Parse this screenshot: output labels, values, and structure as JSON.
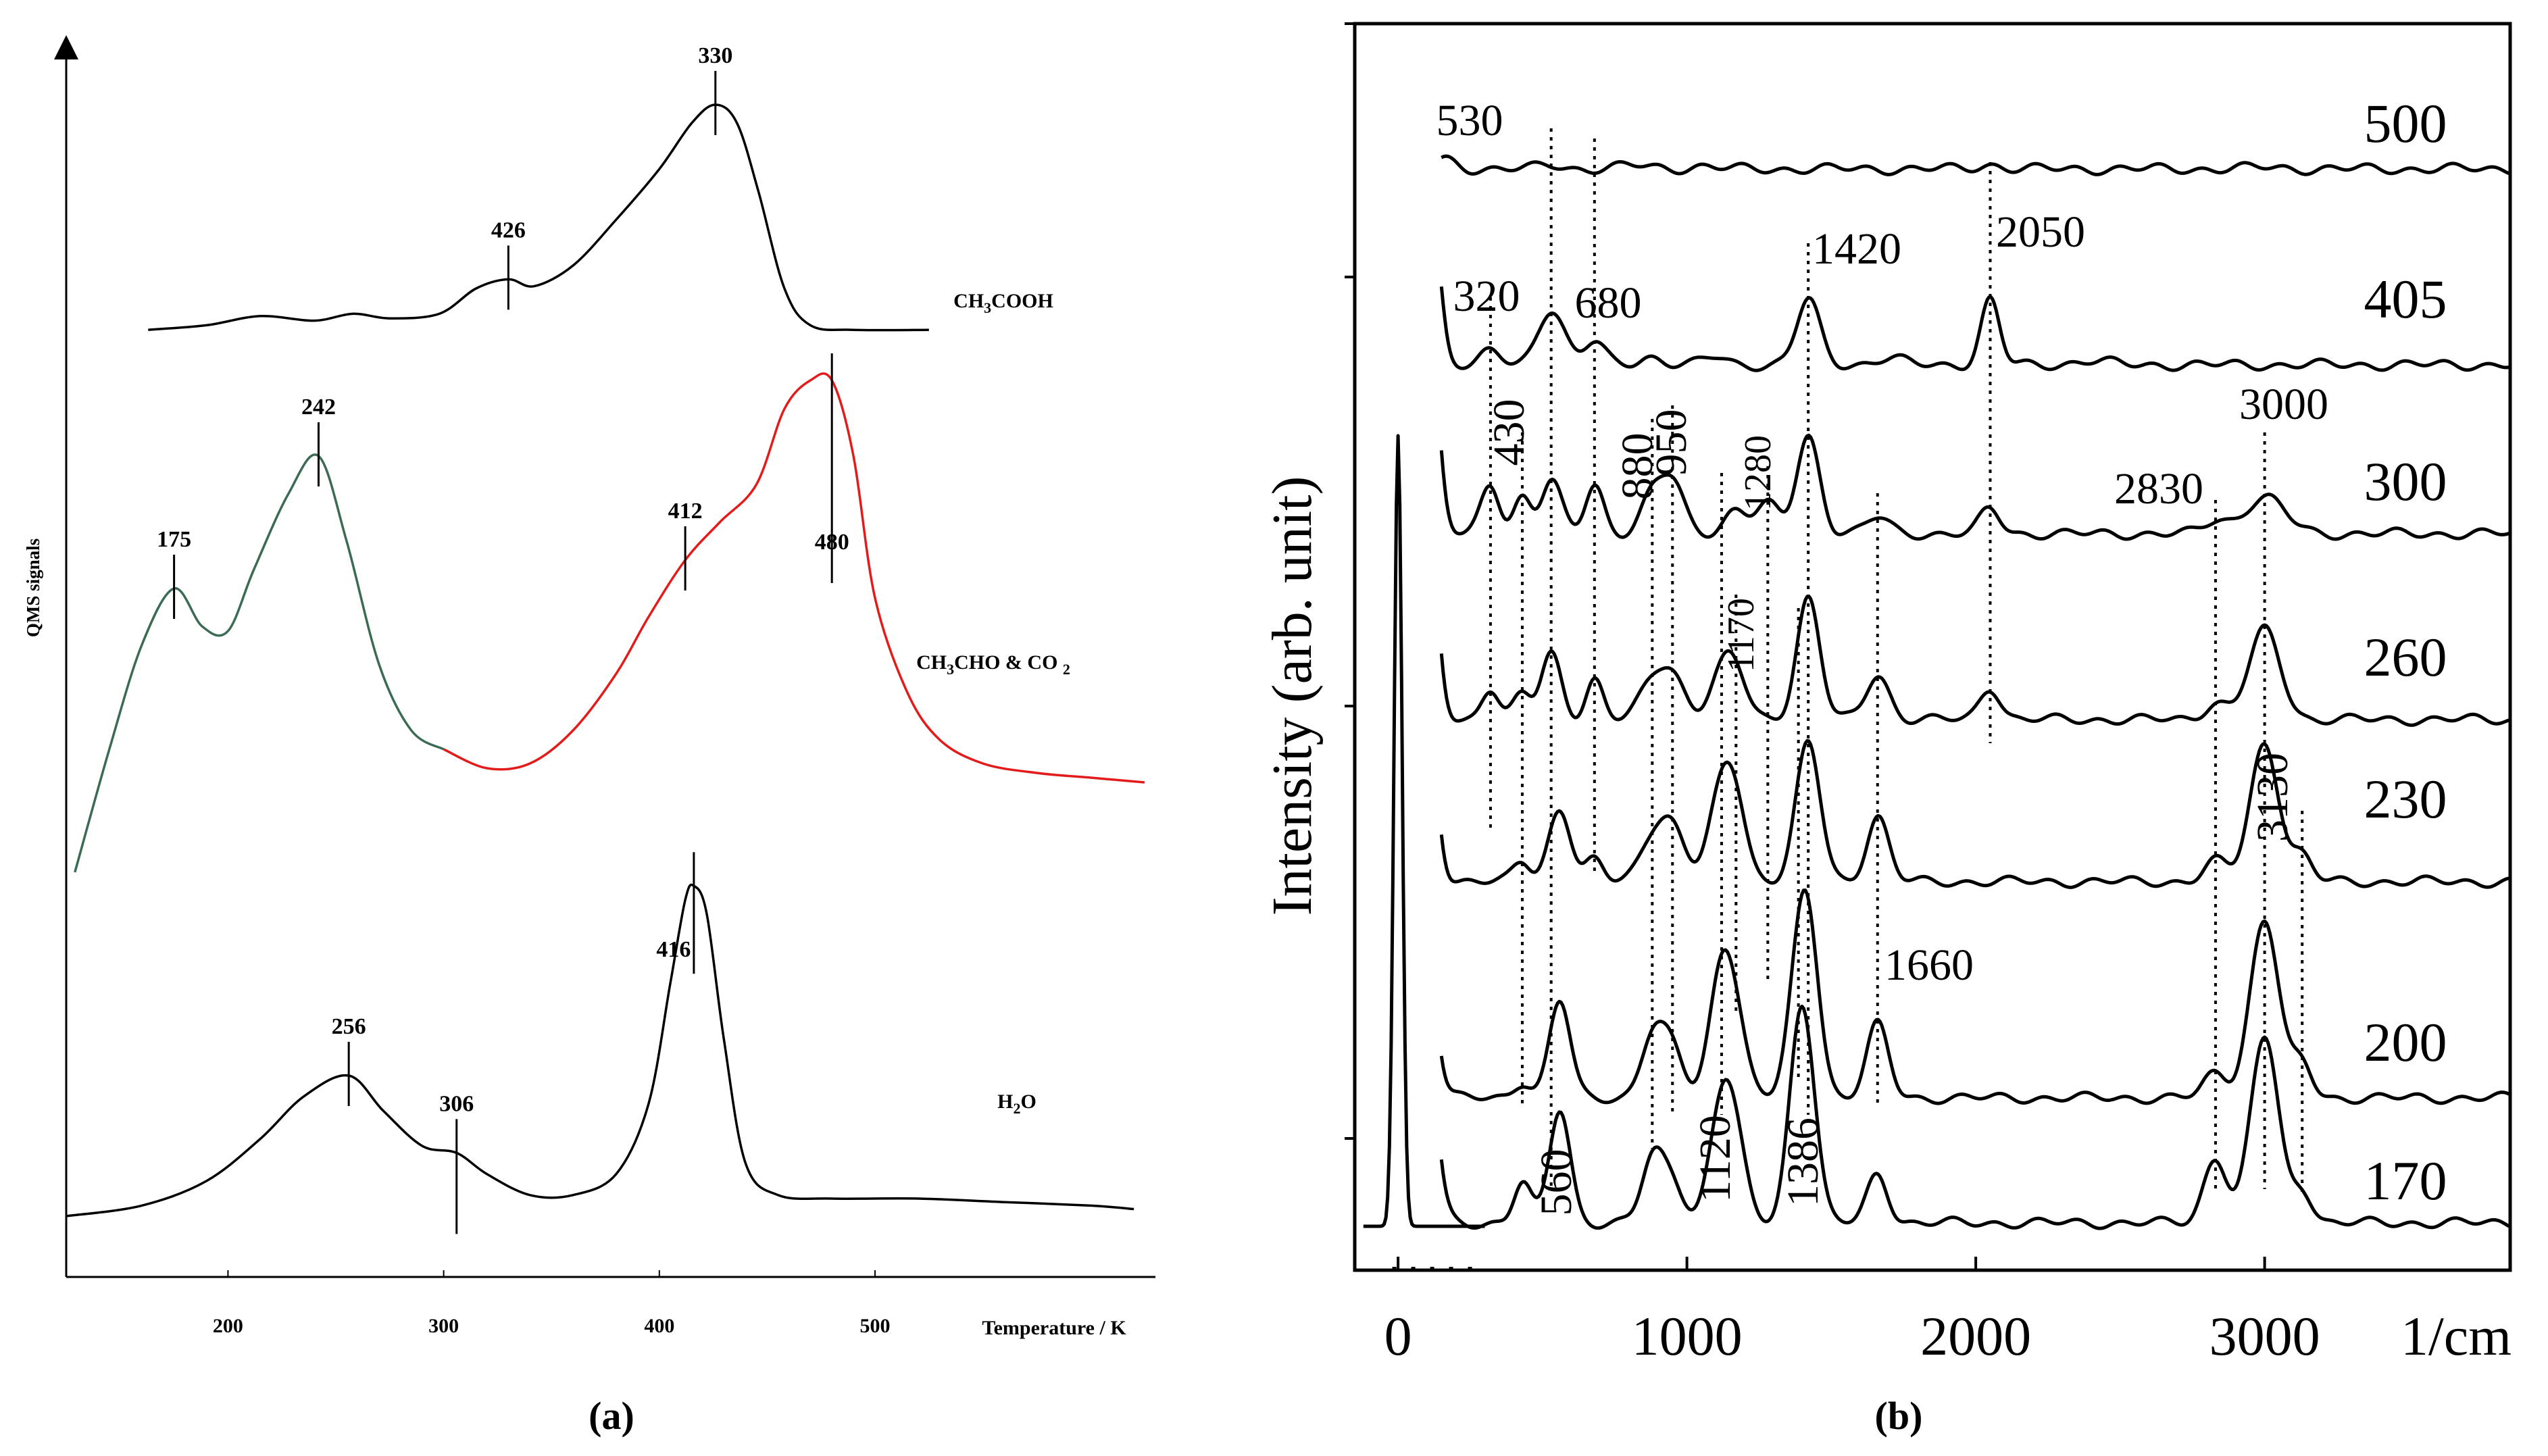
{
  "panel_a": {
    "caption": "(a)",
    "x_axis_label": "Temperature / K",
    "y_axis_label": "QMS signals"
  },
  "panel_b": {
    "caption": "(b)",
    "x_axis_label": "1/cm",
    "y_axis_label": "Intensity (arb. unit)"
  },
  "chart_data": [
    {
      "id": "a",
      "type": "line",
      "title": "",
      "xlabel": "Temperature / K",
      "ylabel": "QMS signals",
      "xlim": [
        125,
        630
      ],
      "x_ticks": [
        200,
        300,
        400,
        500
      ],
      "y_ticks": [],
      "grid": false,
      "series": [
        {
          "name": "CH3COOH",
          "label_main": "CH",
          "label_sub1": "3",
          "label_rest": "COOH",
          "color": "#000000",
          "peaks": [
            330,
            426
          ],
          "points": [
            [
              163,
              0.02
            ],
            [
              190,
              0.04
            ],
            [
              215,
              0.08
            ],
            [
              240,
              0.06
            ],
            [
              258,
              0.09
            ],
            [
              275,
              0.07
            ],
            [
              298,
              0.09
            ],
            [
              315,
              0.2
            ],
            [
              330,
              0.24
            ],
            [
              342,
              0.21
            ],
            [
              360,
              0.3
            ],
            [
              380,
              0.5
            ],
            [
              400,
              0.72
            ],
            [
              415,
              0.92
            ],
            [
              426,
              1.0
            ],
            [
              436,
              0.92
            ],
            [
              446,
              0.62
            ],
            [
              458,
              0.2
            ],
            [
              470,
              0.04
            ],
            [
              490,
              0.02
            ],
            [
              525,
              0.02
            ]
          ]
        },
        {
          "name": "CH3CHO & CO2",
          "label_main": "CH",
          "label_sub1": "3",
          "label_mid": "CHO & CO",
          "label_sub2": "2",
          "colors": [
            "#3c6b55",
            "#e41b1b"
          ],
          "split_at": 300,
          "peaks": [
            175,
            242,
            412,
            480
          ],
          "points": [
            [
              129,
              0.02
            ],
            [
              145,
              0.28
            ],
            [
              160,
              0.5
            ],
            [
              175,
              0.62
            ],
            [
              188,
              0.54
            ],
            [
              200,
              0.53
            ],
            [
              212,
              0.66
            ],
            [
              228,
              0.82
            ],
            [
              242,
              0.9
            ],
            [
              255,
              0.72
            ],
            [
              270,
              0.46
            ],
            [
              285,
              0.32
            ],
            [
              300,
              0.28
            ],
            [
              320,
              0.24
            ],
            [
              340,
              0.25
            ],
            [
              360,
              0.32
            ],
            [
              380,
              0.44
            ],
            [
              395,
              0.56
            ],
            [
              412,
              0.68
            ],
            [
              428,
              0.76
            ],
            [
              445,
              0.84
            ],
            [
              458,
              1.0
            ],
            [
              470,
              1.06
            ],
            [
              480,
              1.06
            ],
            [
              490,
              0.9
            ],
            [
              500,
              0.6
            ],
            [
              515,
              0.4
            ],
            [
              530,
              0.3
            ],
            [
              550,
              0.25
            ],
            [
              575,
              0.23
            ],
            [
              600,
              0.22
            ],
            [
              625,
              0.21
            ]
          ]
        },
        {
          "name": "H2O",
          "label_main": "H",
          "label_sub1": "2",
          "label_rest": "O",
          "color": "#000000",
          "peaks": [
            256,
            306,
            416
          ],
          "points": [
            [
              125,
              0.0
            ],
            [
              160,
              0.03
            ],
            [
              190,
              0.1
            ],
            [
              215,
              0.22
            ],
            [
              235,
              0.34
            ],
            [
              256,
              0.4
            ],
            [
              272,
              0.3
            ],
            [
              290,
              0.2
            ],
            [
              306,
              0.18
            ],
            [
              320,
              0.12
            ],
            [
              340,
              0.06
            ],
            [
              360,
              0.06
            ],
            [
              380,
              0.12
            ],
            [
              395,
              0.32
            ],
            [
              405,
              0.66
            ],
            [
              412,
              0.9
            ],
            [
              416,
              0.94
            ],
            [
              422,
              0.86
            ],
            [
              430,
              0.5
            ],
            [
              440,
              0.15
            ],
            [
              455,
              0.06
            ],
            [
              480,
              0.05
            ],
            [
              520,
              0.05
            ],
            [
              560,
              0.04
            ],
            [
              600,
              0.03
            ],
            [
              620,
              0.02
            ]
          ]
        }
      ],
      "peak_labels": [
        "426",
        "330",
        "175",
        "242",
        "412",
        "480",
        "256",
        "306",
        "416"
      ]
    },
    {
      "id": "b",
      "type": "line",
      "title": "",
      "xlabel": "1/cm",
      "ylabel": "Intensity (arb. unit)",
      "xlim": [
        -150,
        3850
      ],
      "x_ticks": [
        0,
        1000,
        2000,
        3000
      ],
      "y_ticks": [],
      "grid": false,
      "temperature_labels": [
        "500",
        "405",
        "300",
        "260",
        "230",
        "200",
        "170"
      ],
      "peak_labels": [
        "530",
        "320",
        "680",
        "1420",
        "2050",
        "430",
        "880",
        "950",
        "1280",
        "1170",
        "2830",
        "3000",
        "3130",
        "1660",
        "560",
        "1120",
        "1386"
      ],
      "reference_lines_cm1": [
        320,
        430,
        530,
        680,
        880,
        950,
        1120,
        1170,
        1280,
        1386,
        1420,
        1660,
        2050,
        2830,
        3000,
        3130
      ],
      "series": [
        {
          "name": "500",
          "peaks": [
            [
              160,
              0.12,
              40
            ],
            [
              530,
              0.05,
              40
            ],
            [
              820,
              0.04,
              60
            ],
            [
              1050,
              0.03,
              50
            ],
            [
              2050,
              0.05,
              40
            ],
            [
              3000,
              0.02,
              60
            ]
          ]
        },
        {
          "name": "405",
          "peaks": [
            [
              120,
              1.7,
              28
            ],
            [
              320,
              0.15,
              35
            ],
            [
              530,
              0.7,
              45
            ],
            [
              680,
              0.28,
              35
            ],
            [
              870,
              0.1,
              40
            ],
            [
              1100,
              0.1,
              40
            ],
            [
              1420,
              0.8,
              40
            ],
            [
              1700,
              0.08,
              50
            ],
            [
              2050,
              0.8,
              32
            ],
            [
              2400,
              0.05,
              60
            ]
          ]
        },
        {
          "name": "300",
          "peaks": [
            [
              110,
              2.4,
              30
            ],
            [
              320,
              0.6,
              32
            ],
            [
              430,
              0.45,
              30
            ],
            [
              530,
              0.65,
              35
            ],
            [
              680,
              0.6,
              32
            ],
            [
              880,
              0.45,
              40
            ],
            [
              950,
              0.6,
              40
            ],
            [
              1170,
              0.3,
              40
            ],
            [
              1280,
              0.35,
              40
            ],
            [
              1420,
              1.2,
              40
            ],
            [
              1660,
              0.2,
              40
            ],
            [
              2050,
              0.3,
              35
            ],
            [
              2830,
              0.15,
              40
            ],
            [
              3000,
              0.45,
              70
            ]
          ]
        },
        {
          "name": "260",
          "peaks": [
            [
              100,
              2.7,
              32
            ],
            [
              320,
              0.4,
              30
            ],
            [
              430,
              0.3,
              30
            ],
            [
              530,
              0.8,
              35
            ],
            [
              680,
              0.5,
              30
            ],
            [
              880,
              0.4,
              45
            ],
            [
              950,
              0.5,
              45
            ],
            [
              1120,
              0.5,
              45
            ],
            [
              1170,
              0.45,
              40
            ],
            [
              1420,
              1.5,
              40
            ],
            [
              1660,
              0.55,
              40
            ],
            [
              2050,
              0.4,
              35
            ],
            [
              2830,
              0.2,
              40
            ],
            [
              3000,
              1.1,
              55
            ]
          ]
        },
        {
          "name": "230",
          "peaks": [
            [
              90,
              2.8,
              35
            ],
            [
              430,
              0.25,
              30
            ],
            [
              560,
              0.9,
              38
            ],
            [
              680,
              0.25,
              30
            ],
            [
              880,
              0.5,
              45
            ],
            [
              950,
              0.6,
              45
            ],
            [
              1120,
              1.0,
              45
            ],
            [
              1170,
              0.75,
              40
            ],
            [
              1420,
              1.7,
              42
            ],
            [
              1660,
              0.8,
              38
            ],
            [
              2830,
              0.25,
              40
            ],
            [
              3000,
              1.7,
              50
            ],
            [
              3130,
              0.3,
              35
            ]
          ]
        },
        {
          "name": "200",
          "peaks": [
            [
              80,
              3.0,
              38
            ],
            [
              430,
              0.2,
              30
            ],
            [
              560,
              1.2,
              36
            ],
            [
              880,
              0.75,
              40
            ],
            [
              950,
              0.55,
              40
            ],
            [
              1120,
              1.5,
              42
            ],
            [
              1170,
              0.7,
              40
            ],
            [
              1386,
              1.0,
              40
            ],
            [
              1420,
              1.8,
              40
            ],
            [
              1660,
              0.9,
              38
            ],
            [
              2830,
              0.3,
              40
            ],
            [
              3000,
              2.2,
              50
            ],
            [
              3130,
              0.4,
              35
            ]
          ]
        },
        {
          "name": "170",
          "peaks": [
            [
              80,
              3.5,
              40
            ],
            [
              430,
              0.5,
              30
            ],
            [
              560,
              1.4,
              36
            ],
            [
              880,
              0.75,
              38
            ],
            [
              950,
              0.5,
              40
            ],
            [
              1120,
              1.4,
              42
            ],
            [
              1170,
              0.7,
              40
            ],
            [
              1386,
              1.8,
              38
            ],
            [
              1420,
              1.2,
              38
            ],
            [
              1660,
              0.6,
              36
            ],
            [
              2830,
              0.8,
              40
            ],
            [
              3000,
              2.3,
              48
            ],
            [
              3130,
              0.4,
              35
            ]
          ]
        },
        {
          "name": "",
          "peaks": [
            [
              0,
              9.0,
              14
            ]
          ]
        }
      ]
    }
  ]
}
